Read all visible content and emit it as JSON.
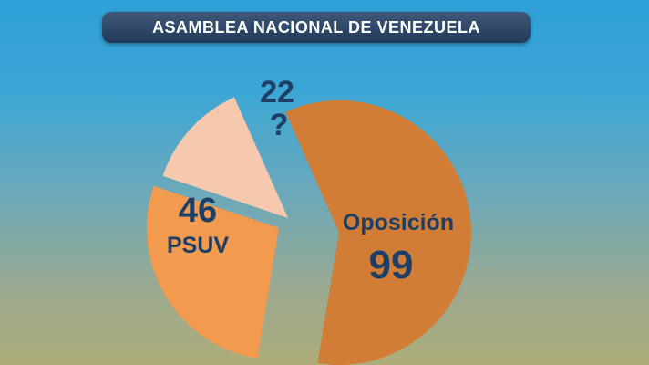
{
  "title": "ASAMBLEA NACIONAL DE VENEZUELA",
  "chart_data": {
    "type": "pie",
    "title": "ASAMBLEA NACIONAL DE VENEZUELA",
    "exploded": true,
    "slices": [
      {
        "label": "Oposición",
        "value": 99,
        "color": "#d27d35"
      },
      {
        "label": "PSUV",
        "value": 46,
        "color": "#f29a4e"
      },
      {
        "label": "?",
        "value": 22,
        "color": "#f6c9ae"
      }
    ]
  }
}
